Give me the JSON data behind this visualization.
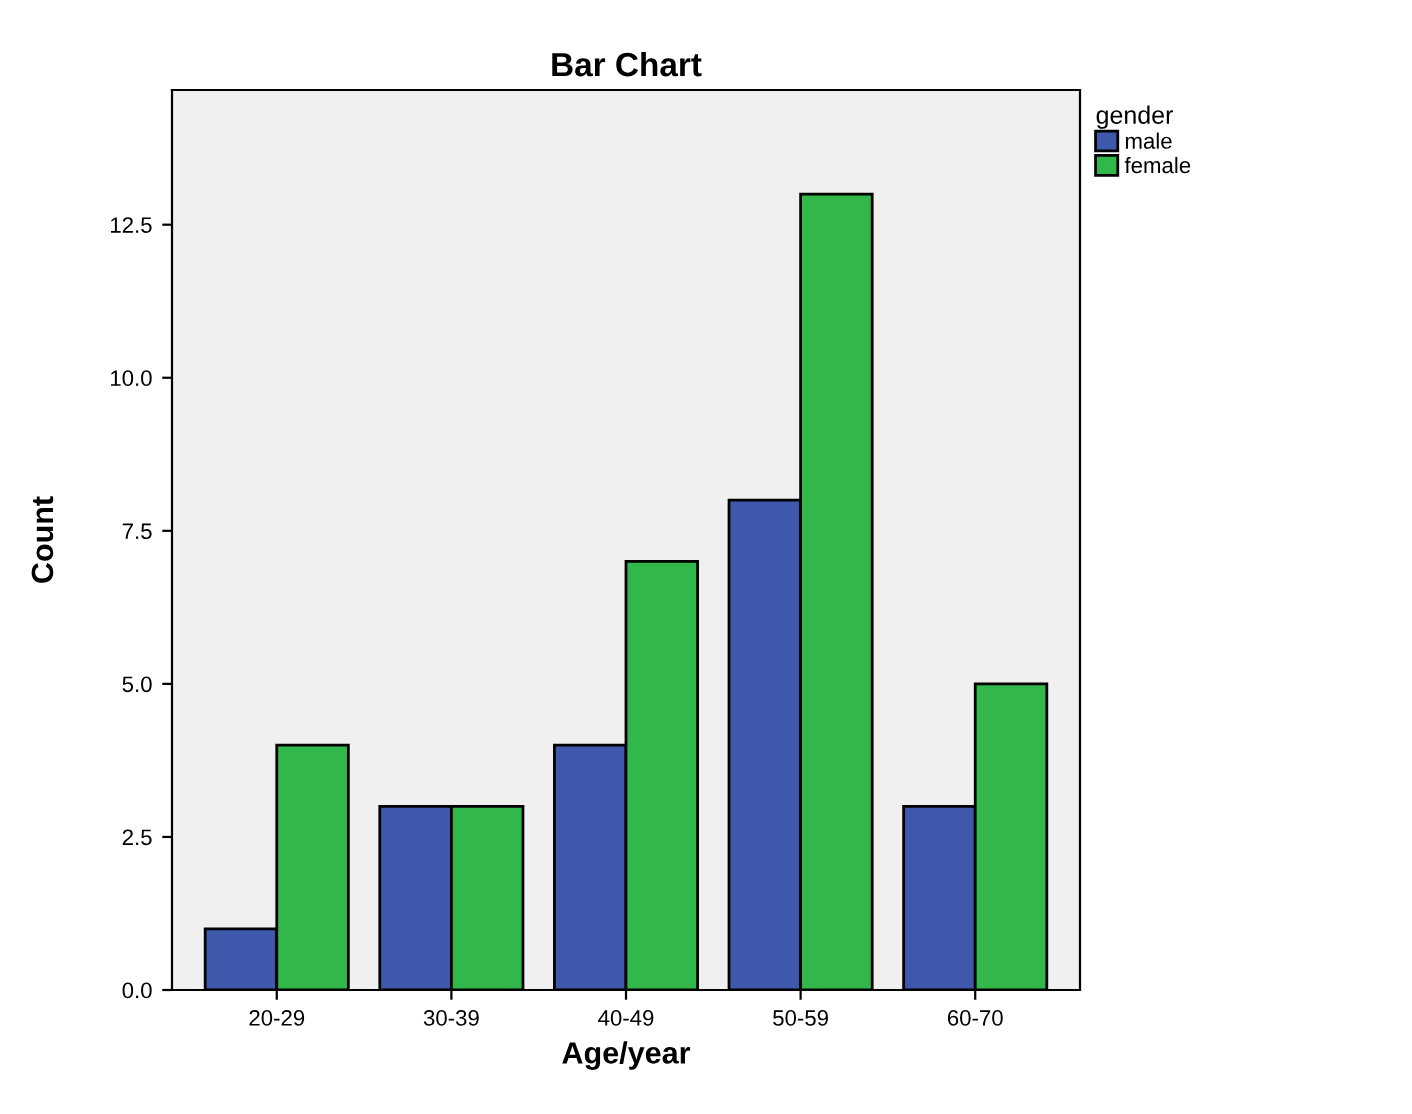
{
  "chart_data": {
    "type": "bar",
    "title": "Bar Chart",
    "xlabel": "Age/year",
    "ylabel": "Count",
    "legend_title": "gender",
    "categories": [
      "20-29",
      "30-39",
      "40-49",
      "50-59",
      "60-70"
    ],
    "series": [
      {
        "name": "male",
        "color": "#3e58ac",
        "values": [
          1,
          3,
          4,
          8,
          3
        ]
      },
      {
        "name": "female",
        "color": "#31b74a",
        "values": [
          4,
          3,
          7,
          13,
          5
        ]
      }
    ],
    "ylim": [
      0,
      14.7
    ],
    "yticks": [
      {
        "value": 0,
        "label": "0.0"
      },
      {
        "value": 2.5,
        "label": "2.5"
      },
      {
        "value": 5,
        "label": "5.0"
      },
      {
        "value": 7.5,
        "label": "7.5"
      },
      {
        "value": 10,
        "label": "10.0"
      },
      {
        "value": 12.5,
        "label": "12.5"
      }
    ],
    "grid": false,
    "legend": "top right"
  }
}
